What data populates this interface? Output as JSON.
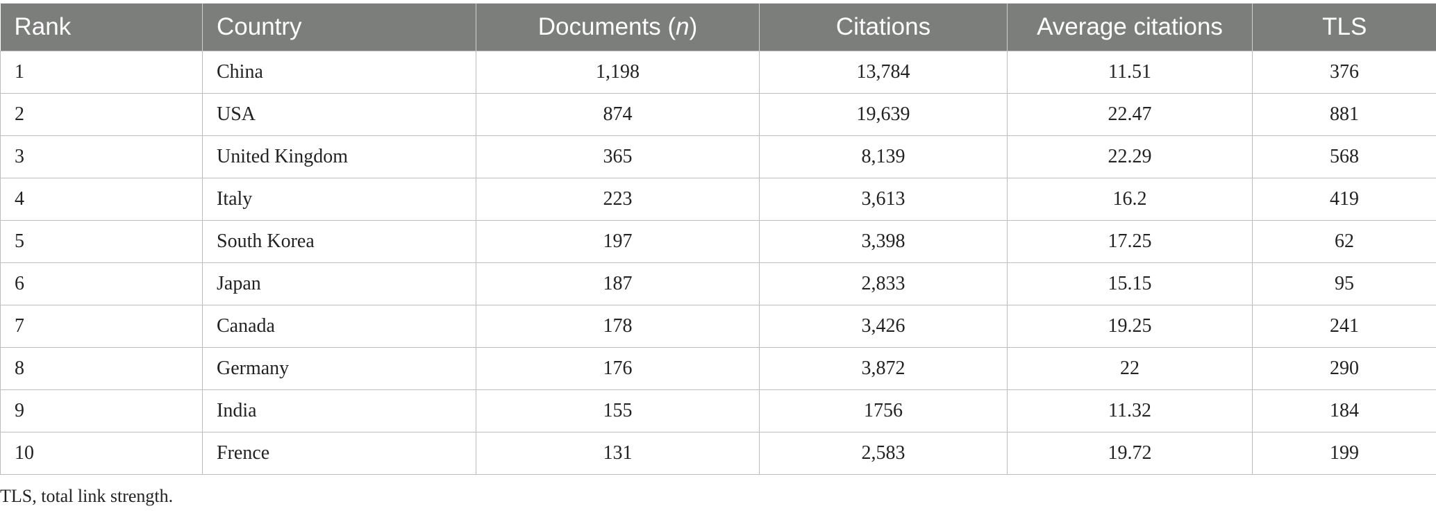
{
  "table": {
    "headers": {
      "rank": "Rank",
      "country": "Country",
      "documents_prefix": "Documents (",
      "documents_italic": "n",
      "documents_suffix": ")",
      "citations": "Citations",
      "average_citations": "Average citations",
      "tls": "TLS"
    },
    "rows": [
      {
        "rank": "1",
        "country": "China",
        "documents": "1,198",
        "citations": "13,784",
        "average": "11.51",
        "tls": "376"
      },
      {
        "rank": "2",
        "country": "USA",
        "documents": "874",
        "citations": "19,639",
        "average": "22.47",
        "tls": "881"
      },
      {
        "rank": "3",
        "country": "United Kingdom",
        "documents": "365",
        "citations": "8,139",
        "average": "22.29",
        "tls": "568"
      },
      {
        "rank": "4",
        "country": "Italy",
        "documents": "223",
        "citations": "3,613",
        "average": "16.2",
        "tls": "419"
      },
      {
        "rank": "5",
        "country": "South Korea",
        "documents": "197",
        "citations": "3,398",
        "average": "17.25",
        "tls": "62"
      },
      {
        "rank": "6",
        "country": "Japan",
        "documents": "187",
        "citations": "2,833",
        "average": "15.15",
        "tls": "95"
      },
      {
        "rank": "7",
        "country": "Canada",
        "documents": "178",
        "citations": "3,426",
        "average": "19.25",
        "tls": "241"
      },
      {
        "rank": "8",
        "country": "Germany",
        "documents": "176",
        "citations": "3,872",
        "average": "22",
        "tls": "290"
      },
      {
        "rank": "9",
        "country": "India",
        "documents": "155",
        "citations": "1756",
        "average": "11.32",
        "tls": "184"
      },
      {
        "rank": "10",
        "country": "Frence",
        "documents": "131",
        "citations": "2,583",
        "average": "19.72",
        "tls": "199"
      }
    ]
  },
  "footnote": "TLS, total link strength."
}
